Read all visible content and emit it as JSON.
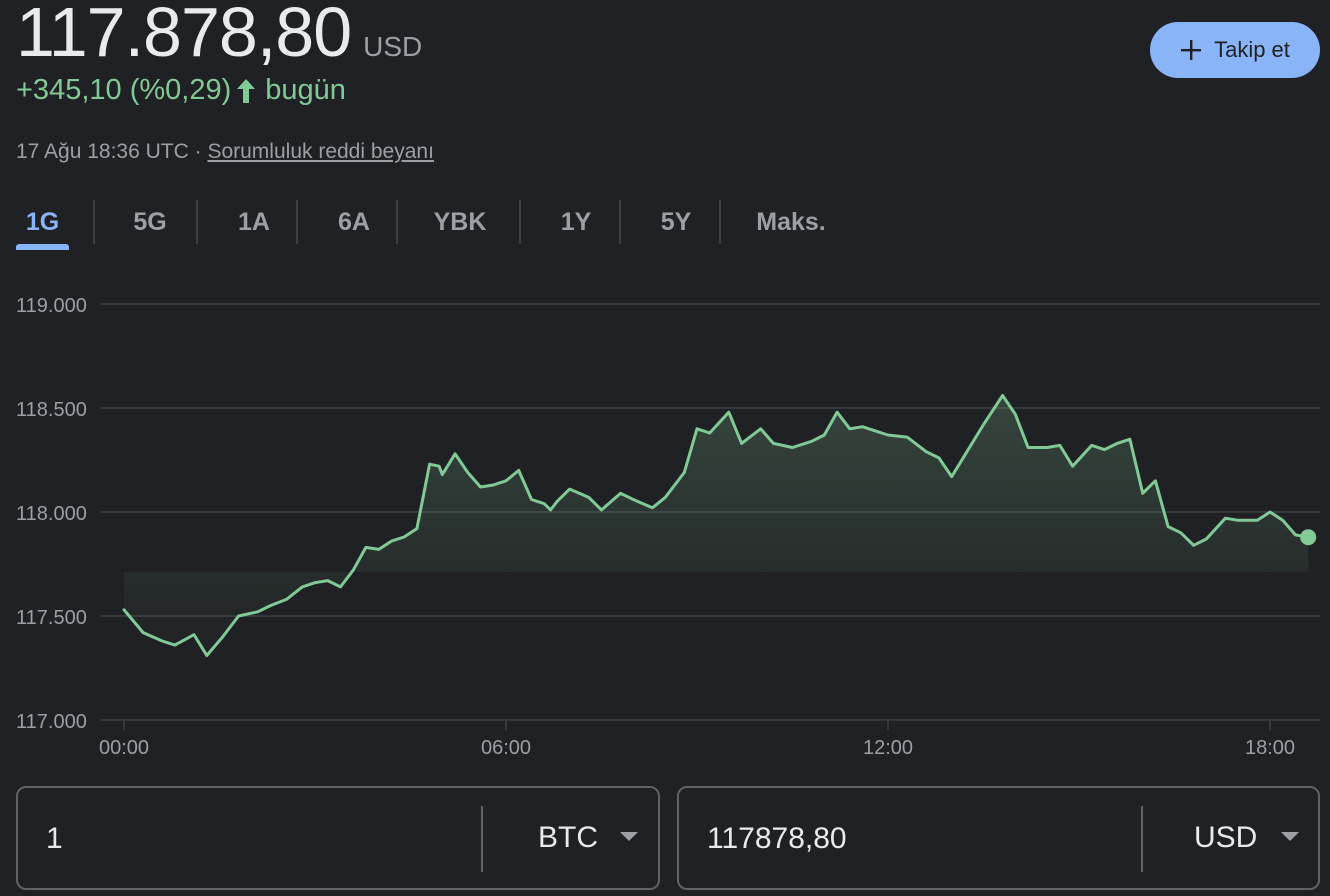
{
  "header": {
    "price": "117.878,80",
    "currency": "USD",
    "change": "+345,10 (%0,29)",
    "change_period": "bugün",
    "timestamp": "17 Ağu 18:36 UTC ·",
    "disclaimer_link": "Sorumluluk reddi beyanı",
    "follow_label": "Takip et"
  },
  "tabs": [
    {
      "label": "1G",
      "active": true
    },
    {
      "label": "5G",
      "active": false
    },
    {
      "label": "1A",
      "active": false
    },
    {
      "label": "6A",
      "active": false
    },
    {
      "label": "YBK",
      "active": false
    },
    {
      "label": "1Y",
      "active": false
    },
    {
      "label": "5Y",
      "active": false
    },
    {
      "label": "Maks.",
      "active": false
    }
  ],
  "colors": {
    "line": "#81c995",
    "positive": "#81c995",
    "accent": "#8ab4f8",
    "grid": "#3c4043",
    "axis_text": "#9aa0a6"
  },
  "chart_data": {
    "type": "line",
    "x_unit": "hour of day (UTC)",
    "y_ticks": [
      117000,
      117500,
      118000,
      118500,
      119000
    ],
    "y_tick_labels": [
      "117.000",
      "117.500",
      "118.000",
      "118.500",
      "119.000"
    ],
    "ylim": [
      117000,
      119000
    ],
    "x_ticks": [
      0,
      6,
      12,
      18
    ],
    "x_tick_labels": [
      "00:00",
      "06:00",
      "12:00",
      "18:00"
    ],
    "xlim": [
      0,
      18.6
    ],
    "grid": true,
    "series": [
      {
        "x": [
          0.0,
          0.3,
          0.6,
          0.8,
          1.1,
          1.3,
          1.55,
          1.8,
          2.1,
          2.3,
          2.55,
          2.8,
          3.0,
          3.2,
          3.4,
          3.6,
          3.8,
          4.0,
          4.2,
          4.4,
          4.6,
          4.8,
          4.95,
          5.0,
          5.2,
          5.4,
          5.6,
          5.8,
          6.0,
          6.2,
          6.4,
          6.6,
          6.7,
          6.8,
          7.0,
          7.3,
          7.5,
          7.8,
          8.0,
          8.3,
          8.5,
          8.8,
          9.0,
          9.2,
          9.5,
          9.7,
          10.0,
          10.2,
          10.5,
          10.8,
          11.0,
          11.2,
          11.4,
          11.6,
          11.8,
          12.0,
          12.3,
          12.6,
          12.8,
          13.0,
          13.2,
          13.5,
          13.8,
          14.0,
          14.2,
          14.5,
          14.7,
          14.9,
          15.2,
          15.4,
          15.6,
          15.8,
          16.0,
          16.2,
          16.4,
          16.6,
          16.8,
          17.0,
          17.3,
          17.5,
          17.8,
          18.0,
          18.2,
          18.4,
          18.6
        ],
        "y": [
          117530,
          117420,
          117380,
          117360,
          117410,
          117310,
          117400,
          117500,
          117520,
          117550,
          117580,
          117640,
          117660,
          117670,
          117640,
          117720,
          117830,
          117820,
          117860,
          117880,
          117920,
          118230,
          118220,
          118180,
          118280,
          118190,
          118120,
          118130,
          118150,
          118200,
          118060,
          118040,
          118010,
          118050,
          118110,
          118070,
          118010,
          118090,
          118060,
          118020,
          118070,
          118190,
          118400,
          118380,
          118480,
          118330,
          118400,
          118330,
          118310,
          118340,
          118370,
          118480,
          118400,
          118410,
          118390,
          118370,
          118360,
          118290,
          118260,
          118170,
          118270,
          118420,
          118560,
          118470,
          118310,
          118310,
          118320,
          118220,
          118320,
          118300,
          118330,
          118350,
          118090,
          118150,
          117930,
          117900,
          117840,
          117870,
          117970,
          117960,
          117960,
          118000,
          117960,
          117890,
          117878.8
        ]
      }
    ]
  },
  "converter": {
    "left": {
      "value": "1",
      "unit": "BTC"
    },
    "right": {
      "value": "117878,80",
      "unit": "USD"
    }
  }
}
